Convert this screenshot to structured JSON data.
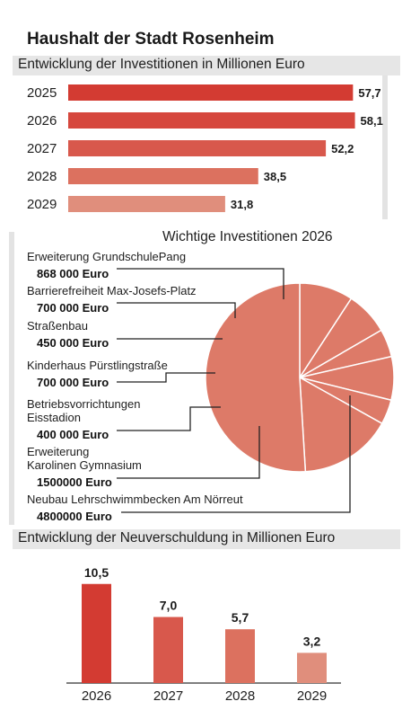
{
  "title": "Haushalt der Stadt Rosenheim",
  "colors": {
    "bar_gradient": [
      "#d33b32",
      "#d6473d",
      "#d8584c",
      "#dc715f",
      "#e08e7c"
    ],
    "pie_fill": "#dd7a68",
    "band": "#e6e6e6"
  },
  "chart_data": [
    {
      "type": "bar",
      "orientation": "horizontal",
      "title": "Entwicklung der Investitionen in Millionen Euro",
      "categories": [
        "2025",
        "2026",
        "2027",
        "2028",
        "2029"
      ],
      "values": [
        57.7,
        58.1,
        52.2,
        38.5,
        31.8
      ],
      "value_labels": [
        "57,7",
        "58,1",
        "52,2",
        "38,5",
        "31,8"
      ]
    },
    {
      "type": "pie",
      "title": "Wichtige Investitionen 2026",
      "slices": [
        {
          "label_lines": [
            "Erweiterung GrundschulePang"
          ],
          "amount": "868 000 Euro",
          "value": 868000
        },
        {
          "label_lines": [
            "Barrierefreiheit Max-Josefs-Platz"
          ],
          "amount": "700 000 Euro",
          "value": 700000
        },
        {
          "label_lines": [
            "Straßenbau"
          ],
          "amount": "450 000 Euro",
          "value": 450000
        },
        {
          "label_lines": [
            "Kinderhaus Pürstlingstraße"
          ],
          "amount": "700 000 Euro",
          "value": 700000
        },
        {
          "label_lines": [
            "Betriebsvorrichtungen",
            "Eisstadion"
          ],
          "amount": "400 000 Euro",
          "value": 400000
        },
        {
          "label_lines": [
            "Erweiterung",
            "Karolinen Gymnasium"
          ],
          "amount": "1500000 Euro",
          "value": 1500000
        },
        {
          "label_lines": [
            "Neubau Lehrschwimmbecken Am Nörreut"
          ],
          "amount": "4800000 Euro",
          "value": 4800000
        }
      ]
    },
    {
      "type": "bar",
      "orientation": "vertical",
      "title": "Entwicklung der Neuverschuldung in Millionen Euro",
      "categories": [
        "2026",
        "2027",
        "2028",
        "2029"
      ],
      "values": [
        10.5,
        7.0,
        5.7,
        3.2
      ],
      "value_labels": [
        "10,5",
        "7,0",
        "5,7",
        "3,2"
      ]
    }
  ]
}
